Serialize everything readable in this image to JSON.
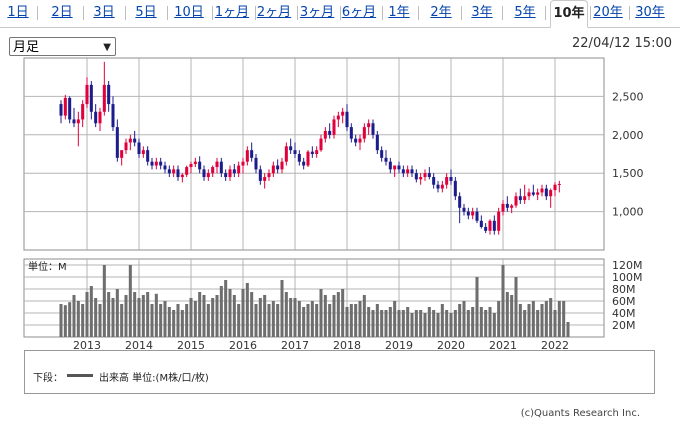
{
  "tabs": [
    "1日",
    "2日",
    "3日",
    "5日",
    "10日",
    "1ヶ月",
    "2ヶ月",
    "3ヶ月",
    "6ヶ月",
    "1年",
    "2年",
    "3年",
    "5年",
    "10年",
    "20年",
    "30年"
  ],
  "active_tab": "10年",
  "period_select": "月足",
  "timestamp": "22/04/12 15:00",
  "legend": {
    "prefix": "下段：",
    "text": "出来高 単位:(M株/口/枚)"
  },
  "copyright": "(c)Quants Research Inc.",
  "colors": {
    "up": "#e0003c",
    "down": "#1c1c8c",
    "volume": "#6e6e6e",
    "grid": "#b4b4b4"
  },
  "chart_data": [
    {
      "type": "candlestick",
      "title": "",
      "x": [
        "2012-07",
        "2012-08",
        "2012-09",
        "2012-10",
        "2012-11",
        "2012-12",
        "2013-01",
        "2013-02",
        "2013-03",
        "2013-04",
        "2013-05",
        "2013-06",
        "2013-07",
        "2013-08",
        "2013-09",
        "2013-10",
        "2013-11",
        "2013-12",
        "2014-01",
        "2014-02",
        "2014-03",
        "2014-04",
        "2014-05",
        "2014-06",
        "2014-07",
        "2014-08",
        "2014-09",
        "2014-10",
        "2014-11",
        "2014-12",
        "2015-01",
        "2015-02",
        "2015-03",
        "2015-04",
        "2015-05",
        "2015-06",
        "2015-07",
        "2015-08",
        "2015-09",
        "2015-10",
        "2015-11",
        "2015-12",
        "2016-01",
        "2016-02",
        "2016-03",
        "2016-04",
        "2016-05",
        "2016-06",
        "2016-07",
        "2016-08",
        "2016-09",
        "2016-10",
        "2016-11",
        "2016-12",
        "2017-01",
        "2017-02",
        "2017-03",
        "2017-04",
        "2017-05",
        "2017-06",
        "2017-07",
        "2017-08",
        "2017-09",
        "2017-10",
        "2017-11",
        "2017-12",
        "2018-01",
        "2018-02",
        "2018-03",
        "2018-04",
        "2018-05",
        "2018-06",
        "2018-07",
        "2018-08",
        "2018-09",
        "2018-10",
        "2018-11",
        "2018-12",
        "2019-01",
        "2019-02",
        "2019-03",
        "2019-04",
        "2019-05",
        "2019-06",
        "2019-07",
        "2019-08",
        "2019-09",
        "2019-10",
        "2019-11",
        "2019-12",
        "2020-01",
        "2020-02",
        "2020-03",
        "2020-04",
        "2020-05",
        "2020-06",
        "2020-07",
        "2020-08",
        "2020-09",
        "2020-10",
        "2020-11",
        "2020-12",
        "2021-01",
        "2021-02",
        "2021-03",
        "2021-04",
        "2021-05",
        "2021-06",
        "2021-07",
        "2021-08",
        "2021-09",
        "2021-10",
        "2021-11",
        "2021-12",
        "2022-01",
        "2022-02",
        "2022-03",
        "2022-04"
      ],
      "candles": [
        [
          2400,
          2450,
          2150,
          2250
        ],
        [
          2250,
          2520,
          2200,
          2480
        ],
        [
          2480,
          2500,
          2150,
          2200
        ],
        [
          2200,
          2350,
          2100,
          2150
        ],
        [
          2150,
          2300,
          1850,
          2200
        ],
        [
          2200,
          2450,
          2100,
          2400
        ],
        [
          2400,
          2750,
          2350,
          2650
        ],
        [
          2650,
          2700,
          2200,
          2300
        ],
        [
          2300,
          2400,
          2100,
          2150
        ],
        [
          2150,
          2350,
          2050,
          2300
        ],
        [
          2300,
          2950,
          2250,
          2650
        ],
        [
          2650,
          2700,
          2300,
          2400
        ],
        [
          2400,
          2500,
          2050,
          2100
        ],
        [
          2100,
          2200,
          1650,
          1700
        ],
        [
          1700,
          1800,
          1600,
          1800
        ],
        [
          1800,
          1950,
          1750,
          1900
        ],
        [
          1900,
          2000,
          1800,
          1950
        ],
        [
          1950,
          2050,
          1850,
          1900
        ],
        [
          1900,
          1950,
          1700,
          1750
        ],
        [
          1750,
          1850,
          1700,
          1800
        ],
        [
          1800,
          1850,
          1600,
          1650
        ],
        [
          1650,
          1700,
          1550,
          1600
        ],
        [
          1600,
          1700,
          1550,
          1650
        ],
        [
          1650,
          1700,
          1550,
          1600
        ],
        [
          1600,
          1650,
          1500,
          1550
        ],
        [
          1550,
          1600,
          1450,
          1500
        ],
        [
          1500,
          1600,
          1450,
          1550
        ],
        [
          1550,
          1600,
          1400,
          1450
        ],
        [
          1450,
          1500,
          1380,
          1480
        ],
        [
          1480,
          1600,
          1450,
          1580
        ],
        [
          1580,
          1650,
          1500,
          1620
        ],
        [
          1620,
          1700,
          1580,
          1650
        ],
        [
          1650,
          1720,
          1500,
          1550
        ],
        [
          1550,
          1600,
          1400,
          1450
        ],
        [
          1450,
          1550,
          1400,
          1500
        ],
        [
          1500,
          1600,
          1450,
          1580
        ],
        [
          1580,
          1700,
          1500,
          1650
        ],
        [
          1650,
          1700,
          1450,
          1500
        ],
        [
          1500,
          1550,
          1400,
          1450
        ],
        [
          1450,
          1600,
          1400,
          1550
        ],
        [
          1550,
          1620,
          1450,
          1500
        ],
        [
          1500,
          1650,
          1450,
          1600
        ],
        [
          1600,
          1700,
          1500,
          1650
        ],
        [
          1650,
          1850,
          1600,
          1800
        ],
        [
          1800,
          1900,
          1650,
          1700
        ],
        [
          1700,
          1750,
          1500,
          1550
        ],
        [
          1550,
          1600,
          1350,
          1400
        ],
        [
          1400,
          1500,
          1300,
          1450
        ],
        [
          1450,
          1550,
          1400,
          1500
        ],
        [
          1500,
          1650,
          1450,
          1600
        ],
        [
          1600,
          1680,
          1500,
          1550
        ],
        [
          1550,
          1700,
          1500,
          1650
        ],
        [
          1650,
          1900,
          1600,
          1850
        ],
        [
          1850,
          1950,
          1750,
          1800
        ],
        [
          1800,
          1900,
          1700,
          1750
        ],
        [
          1750,
          1800,
          1600,
          1650
        ],
        [
          1650,
          1700,
          1550,
          1600
        ],
        [
          1600,
          1800,
          1580,
          1780
        ],
        [
          1780,
          1850,
          1700,
          1750
        ],
        [
          1750,
          1850,
          1700,
          1800
        ],
        [
          1800,
          2000,
          1780,
          1950
        ],
        [
          1950,
          2100,
          1900,
          2050
        ],
        [
          2050,
          2150,
          1950,
          2000
        ],
        [
          2000,
          2250,
          1950,
          2200
        ],
        [
          2200,
          2300,
          2100,
          2250
        ],
        [
          2250,
          2350,
          2150,
          2300
        ],
        [
          2300,
          2400,
          2050,
          2100
        ],
        [
          2100,
          2150,
          1900,
          1950
        ],
        [
          1950,
          2000,
          1850,
          1900
        ],
        [
          1900,
          2000,
          1800,
          1950
        ],
        [
          1950,
          2150,
          1900,
          2100
        ],
        [
          2100,
          2200,
          2000,
          2150
        ],
        [
          2150,
          2200,
          1950,
          2000
        ],
        [
          2000,
          2050,
          1750,
          1800
        ],
        [
          1800,
          1850,
          1650,
          1700
        ],
        [
          1700,
          1800,
          1600,
          1650
        ],
        [
          1650,
          1700,
          1500,
          1550
        ],
        [
          1550,
          1600,
          1450,
          1600
        ],
        [
          1600,
          1650,
          1500,
          1550
        ],
        [
          1550,
          1600,
          1450,
          1500
        ],
        [
          1500,
          1600,
          1450,
          1550
        ],
        [
          1550,
          1600,
          1450,
          1500
        ],
        [
          1500,
          1550,
          1380,
          1420
        ],
        [
          1420,
          1500,
          1350,
          1450
        ],
        [
          1450,
          1550,
          1400,
          1500
        ],
        [
          1500,
          1580,
          1420,
          1450
        ],
        [
          1450,
          1500,
          1300,
          1350
        ],
        [
          1350,
          1400,
          1250,
          1300
        ],
        [
          1300,
          1400,
          1250,
          1350
        ],
        [
          1350,
          1500,
          1300,
          1450
        ],
        [
          1450,
          1550,
          1350,
          1400
        ],
        [
          1400,
          1450,
          1150,
          1200
        ],
        [
          1200,
          1250,
          850,
          1050
        ],
        [
          1050,
          1100,
          950,
          1000
        ],
        [
          1000,
          1050,
          900,
          950
        ],
        [
          950,
          1050,
          900,
          1000
        ],
        [
          1000,
          1050,
          850,
          880
        ],
        [
          880,
          950,
          780,
          800
        ],
        [
          800,
          850,
          720,
          750
        ],
        [
          750,
          900,
          700,
          880
        ],
        [
          880,
          950,
          700,
          750
        ],
        [
          750,
          1050,
          700,
          1000
        ],
        [
          1000,
          1150,
          950,
          1100
        ],
        [
          1100,
          1200,
          1000,
          1050
        ],
        [
          1050,
          1100,
          980,
          1080
        ],
        [
          1080,
          1250,
          1050,
          1200
        ],
        [
          1200,
          1300,
          1100,
          1150
        ],
        [
          1150,
          1350,
          1100,
          1200
        ],
        [
          1200,
          1300,
          1150,
          1250
        ],
        [
          1250,
          1350,
          1200,
          1220
        ],
        [
          1220,
          1300,
          1150,
          1250
        ],
        [
          1250,
          1350,
          1200,
          1300
        ],
        [
          1300,
          1350,
          1150,
          1200
        ],
        [
          1200,
          1300,
          1050,
          1280
        ],
        [
          1280,
          1380,
          1200,
          1350
        ],
        [
          1350,
          1400,
          1250,
          1360
        ]
      ],
      "ylim": [
        500,
        3000
      ],
      "yticks": [
        "2,500",
        "2,000",
        "1,500",
        "1,000"
      ],
      "ytick_values": [
        2500,
        2000,
        1500,
        1000
      ]
    },
    {
      "type": "bar",
      "title": "",
      "ylabel": "単位：M",
      "values": [
        55,
        53,
        58,
        70,
        60,
        55,
        75,
        85,
        65,
        55,
        120,
        75,
        65,
        80,
        55,
        70,
        120,
        75,
        65,
        70,
        75,
        55,
        72,
        55,
        60,
        50,
        45,
        55,
        45,
        55,
        65,
        60,
        75,
        70,
        55,
        65,
        70,
        85,
        95,
        80,
        70,
        55,
        80,
        90,
        75,
        55,
        65,
        70,
        55,
        60,
        55,
        95,
        75,
        65,
        65,
        60,
        50,
        55,
        60,
        55,
        80,
        70,
        55,
        70,
        75,
        80,
        50,
        55,
        55,
        60,
        70,
        50,
        45,
        55,
        45,
        45,
        50,
        60,
        45,
        45,
        50,
        40,
        45,
        45,
        40,
        50,
        45,
        40,
        55,
        45,
        40,
        45,
        55,
        60,
        45,
        50,
        100,
        50,
        45,
        50,
        40,
        60,
        120,
        75,
        70,
        100,
        55,
        45,
        55,
        60,
        45,
        55,
        60,
        65,
        45,
        60,
        60,
        25
      ],
      "ylim": [
        0,
        130
      ],
      "yticks": [
        "120M",
        "100M",
        "80M",
        "60M",
        "40M",
        "20M"
      ],
      "ytick_values": [
        120,
        100,
        80,
        60,
        40,
        20
      ],
      "xticks": [
        "2013",
        "2014",
        "2015",
        "2016",
        "2017",
        "2018",
        "2019",
        "2020",
        "2021",
        "2022"
      ]
    }
  ]
}
